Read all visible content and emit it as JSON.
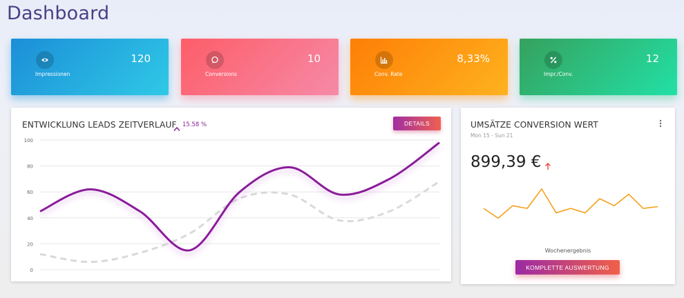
{
  "page": {
    "title": "Dashboard"
  },
  "kpis": [
    {
      "label": "Impressionen",
      "value": "120",
      "icon": "eye-icon"
    },
    {
      "label": "Conversions",
      "value": "10",
      "icon": "chat-bubble-icon"
    },
    {
      "label": "Conv. Rate",
      "value": "8,33%",
      "icon": "bar-chart-icon"
    },
    {
      "label": "Impr./Conv.",
      "value": "12",
      "icon": "percent-icon"
    }
  ],
  "leads": {
    "title": "ENTWICKLUNG LEADS ZEITVERLAUF",
    "trend": "15.58 %",
    "details_label": "DETAILS"
  },
  "sales": {
    "title": "UMSÄTZE CONVERSION WERT",
    "date_range": "Mon 15 - Sun 21",
    "amount": "899,39 €",
    "chart_label": "Wochenergebnis",
    "button_label": "KOMPLETTE AUSWERTUNG"
  },
  "colors": {
    "purple": "#8a1e9a",
    "orange": "#f4a01a",
    "red_arrow": "#e8453c",
    "title": "#4b3f86"
  },
  "chart_data": [
    {
      "type": "line",
      "ylim": [
        0,
        100
      ],
      "yticks": [
        0,
        20,
        40,
        60,
        80,
        100
      ],
      "x": [
        0,
        1,
        2,
        3,
        4,
        5,
        6,
        7,
        8
      ],
      "series": [
        {
          "values": [
            45,
            62,
            45,
            15,
            60,
            79,
            58,
            70,
            98
          ]
        },
        {
          "values": [
            12,
            6,
            13,
            28,
            55,
            58,
            38,
            45,
            68
          ]
        }
      ]
    },
    {
      "type": "line",
      "values": [
        38,
        27,
        41,
        38,
        60,
        33,
        38,
        33,
        49,
        41,
        54,
        38,
        40
      ]
    }
  ]
}
